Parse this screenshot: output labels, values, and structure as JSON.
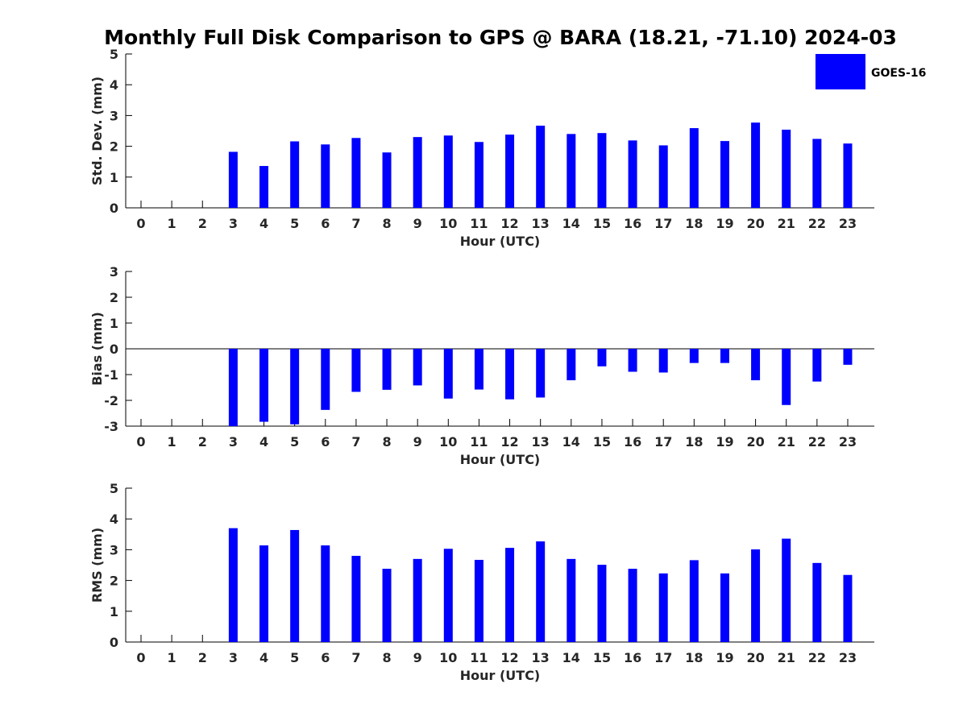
{
  "figure": {
    "title": "Monthly Full Disk Comparison to GPS @ BARA (18.21, -71.10) 2024-03"
  },
  "legend": {
    "label": "GOES-16",
    "color": "#0000ff",
    "placement": "top-right"
  },
  "chart_data": [
    {
      "type": "bar",
      "xlabel": "Hour (UTC)",
      "ylabel": "Std. Dev. (mm)",
      "ylim": [
        0,
        5
      ],
      "yticks": [
        0,
        1,
        2,
        3,
        4,
        5
      ],
      "categories": [
        "0",
        "1",
        "2",
        "3",
        "4",
        "5",
        "6",
        "7",
        "8",
        "9",
        "10",
        "11",
        "12",
        "13",
        "14",
        "15",
        "16",
        "17",
        "18",
        "19",
        "20",
        "21",
        "22",
        "23"
      ],
      "series": [
        {
          "name": "GOES-16",
          "color": "#0000ff",
          "values": [
            null,
            null,
            null,
            1.82,
            1.36,
            2.16,
            2.06,
            2.27,
            1.8,
            2.3,
            2.35,
            2.14,
            2.38,
            2.67,
            2.4,
            2.43,
            2.19,
            2.03,
            2.59,
            2.17,
            2.77,
            2.54,
            2.24,
            2.09
          ]
        }
      ],
      "grid": false
    },
    {
      "type": "bar",
      "xlabel": "Hour (UTC)",
      "ylabel": "Bias (mm)",
      "ylim": [
        -3,
        3
      ],
      "yticks": [
        -3,
        -2,
        -1,
        0,
        1,
        2,
        3
      ],
      "zero_line": true,
      "categories": [
        "0",
        "1",
        "2",
        "3",
        "4",
        "5",
        "6",
        "7",
        "8",
        "9",
        "10",
        "11",
        "12",
        "13",
        "14",
        "15",
        "16",
        "17",
        "18",
        "19",
        "20",
        "21",
        "22",
        "23"
      ],
      "series": [
        {
          "name": "GOES-16",
          "color": "#0000ff",
          "values": [
            null,
            null,
            null,
            -3.0,
            -2.83,
            -2.93,
            -2.37,
            -1.67,
            -1.59,
            -1.42,
            -1.93,
            -1.58,
            -1.96,
            -1.89,
            -1.22,
            -0.68,
            -0.89,
            -0.92,
            -0.55,
            -0.55,
            -1.22,
            -2.18,
            -1.27,
            -0.62
          ]
        }
      ],
      "grid": false
    },
    {
      "type": "bar",
      "xlabel": "Hour (UTC)",
      "ylabel": "RMS (mm)",
      "ylim": [
        0,
        5
      ],
      "yticks": [
        0,
        1,
        2,
        3,
        4,
        5
      ],
      "categories": [
        "0",
        "1",
        "2",
        "3",
        "4",
        "5",
        "6",
        "7",
        "8",
        "9",
        "10",
        "11",
        "12",
        "13",
        "14",
        "15",
        "16",
        "17",
        "18",
        "19",
        "20",
        "21",
        "22",
        "23"
      ],
      "series": [
        {
          "name": "GOES-16",
          "color": "#0000ff",
          "values": [
            null,
            null,
            null,
            3.7,
            3.14,
            3.64,
            3.14,
            2.8,
            2.38,
            2.7,
            3.03,
            2.67,
            3.06,
            3.27,
            2.7,
            2.51,
            2.38,
            2.23,
            2.66,
            2.23,
            3.01,
            3.36,
            2.57,
            2.18
          ]
        }
      ],
      "grid": false
    }
  ]
}
